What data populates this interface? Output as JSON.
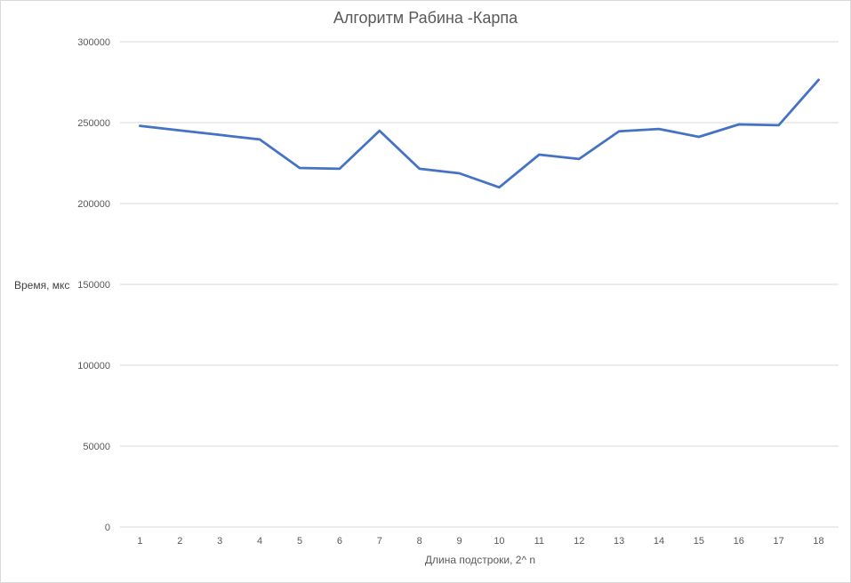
{
  "chart_data": {
    "type": "line",
    "title": "Алгоритм Рабина -Карпа",
    "xlabel": "Длина подстроки, 2^ n",
    "ylabel": "Время, мкс",
    "categories": [
      "1",
      "2",
      "3",
      "4",
      "5",
      "6",
      "7",
      "8",
      "9",
      "10",
      "11",
      "12",
      "13",
      "14",
      "15",
      "16",
      "17",
      "18"
    ],
    "series": [
      {
        "values": [
          248000,
          245200,
          242400,
          239600,
          222000,
          221500,
          245000,
          221500,
          218700,
          210000,
          230200,
          227500,
          244600,
          246100,
          241200,
          248900,
          248400,
          276500
        ]
      }
    ],
    "y_ticks": [
      "0",
      "50000",
      "100000",
      "150000",
      "200000",
      "250000",
      "300000"
    ],
    "ylim": [
      0,
      300000
    ],
    "grid": "horizontal",
    "legend": "none",
    "line_color": "#4472c4",
    "grid_color": "#d9d9d9"
  }
}
